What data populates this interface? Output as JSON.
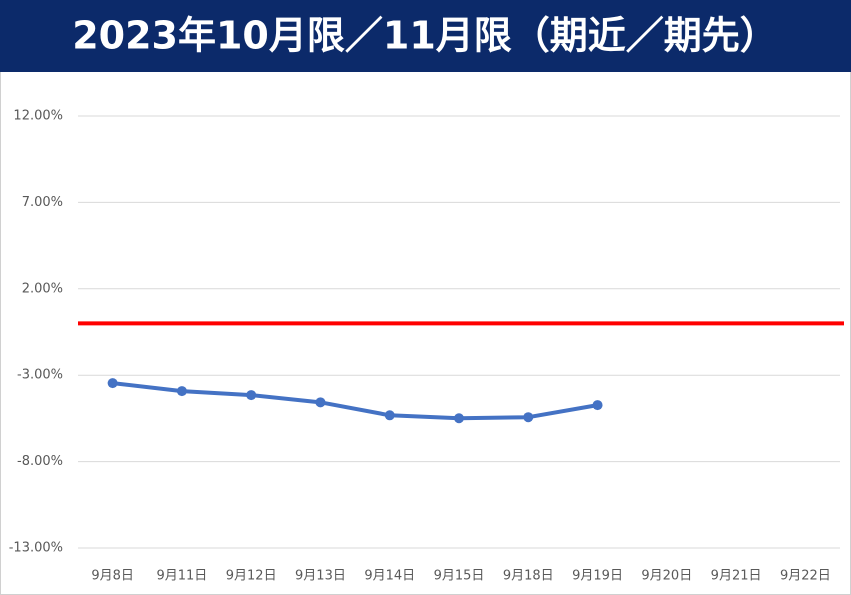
{
  "chart_data": {
    "type": "line",
    "title": "2023年10月限／11月限（期近／期先）",
    "categories": [
      "9月8日",
      "9月11日",
      "9月12日",
      "9月13日",
      "9月14日",
      "9月15日",
      "9月18日",
      "9月19日",
      "9月20日",
      "9月21日",
      "9月22日"
    ],
    "series": [
      {
        "color": "#4472c4",
        "values": [
          -3.46,
          -3.92,
          -4.15,
          -4.57,
          -5.32,
          -5.49,
          -5.43,
          -4.73,
          null,
          null,
          null
        ]
      }
    ],
    "reference_line": {
      "value": 0,
      "color": "#ff0000"
    },
    "ylim": [
      -13,
      12
    ],
    "yticks": [
      {
        "value": -13,
        "label": "-13.00%"
      },
      {
        "value": -8,
        "label": "-8.00%"
      },
      {
        "value": -3,
        "label": "-3.00%"
      },
      {
        "value": 2,
        "label": "2.00%"
      },
      {
        "value": 7,
        "label": "7.00%"
      },
      {
        "value": 12,
        "label": "12.00%"
      }
    ],
    "grid": true
  }
}
